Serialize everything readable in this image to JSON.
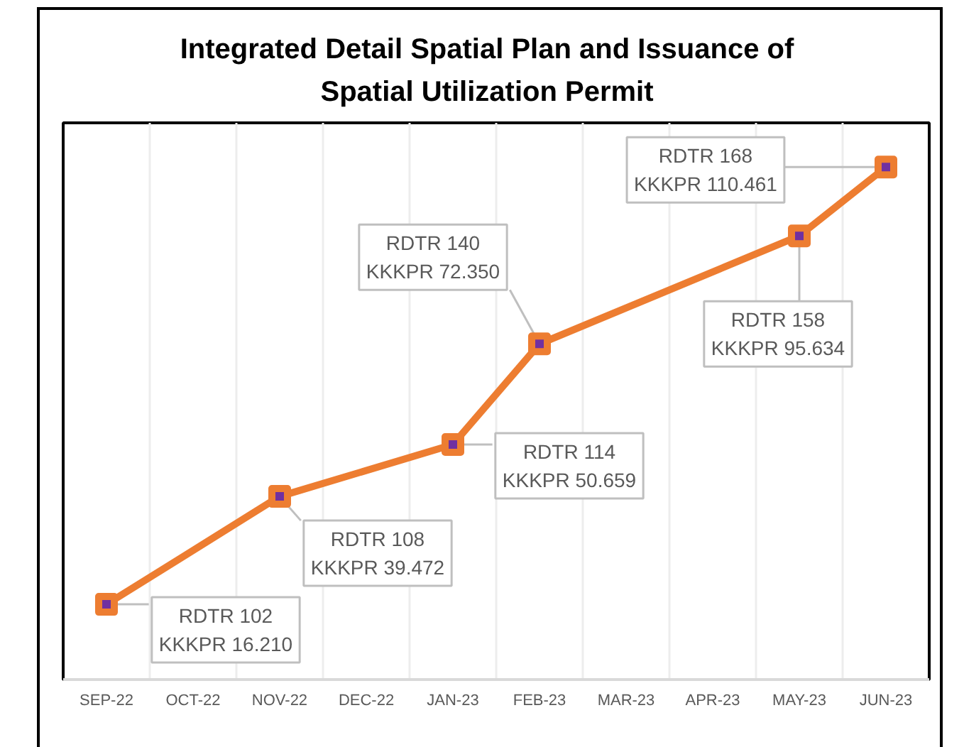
{
  "chart_data": {
    "type": "line",
    "title": "Integrated Detail Spatial Plan and Issuance of Spatial Utilization Permit",
    "categories": [
      "SEP-22",
      "OCT-22",
      "NOV-22",
      "DEC-22",
      "JAN-23",
      "FEB-23",
      "MAR-23",
      "APR-23",
      "MAY-23",
      "JUN-23"
    ],
    "values": [
      16210,
      null,
      39472,
      null,
      50659,
      72350,
      null,
      null,
      95634,
      110461
    ],
    "color": "#ed7d31",
    "value_labels": [
      "RDTR 102\nKKKPR 16.210",
      null,
      "RDTR 108\nKKKPR 39.472",
      null,
      "RDTR 114\nKKKPR 50.659",
      "RDTR 140\nKKKPR 72.350",
      null,
      null,
      "RDTR 158\nKKKPR 95.634",
      "RDTR 168\nKKKPR 110.461"
    ],
    "ylim": [
      0,
      120000
    ],
    "tick_labels": "x",
    "grid": "x",
    "marker": "square",
    "line_style": "solid"
  }
}
